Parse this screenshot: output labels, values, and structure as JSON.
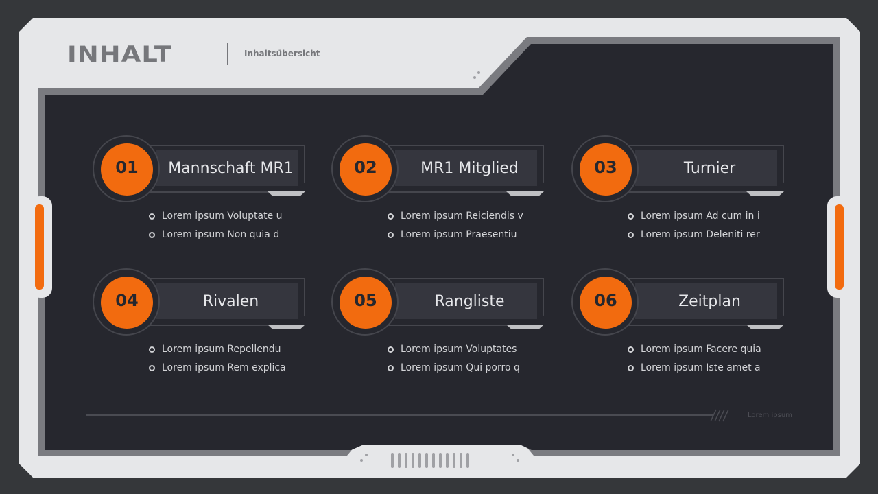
{
  "header": {
    "title": "INHALT",
    "subtitle": "Inhaltsübersicht"
  },
  "accent": "#f26b0f",
  "items": [
    {
      "num": "01",
      "label": "Mannschaft MR1",
      "bullets": [
        "Lorem ipsum Voluptate u",
        "Lorem ipsum Non quia d"
      ]
    },
    {
      "num": "02",
      "label": "MR1 Mitglied",
      "bullets": [
        "Lorem ipsum Reiciendis v",
        "Lorem ipsum Praesentiu"
      ]
    },
    {
      "num": "03",
      "label": "Turnier",
      "bullets": [
        "Lorem ipsum Ad cum in i",
        "Lorem ipsum Deleniti rer"
      ]
    },
    {
      "num": "04",
      "label": "Rivalen",
      "bullets": [
        "Lorem ipsum Repellendu",
        "Lorem ipsum Rem explica"
      ]
    },
    {
      "num": "05",
      "label": "Rangliste",
      "bullets": [
        "Lorem ipsum Voluptates",
        "Lorem ipsum Qui porro q"
      ]
    },
    {
      "num": "06",
      "label": "Zeitplan",
      "bullets": [
        "Lorem ipsum Facere quia",
        "Lorem ipsum Iste amet a"
      ]
    }
  ],
  "footer": {
    "text": "Lorem ipsum"
  }
}
